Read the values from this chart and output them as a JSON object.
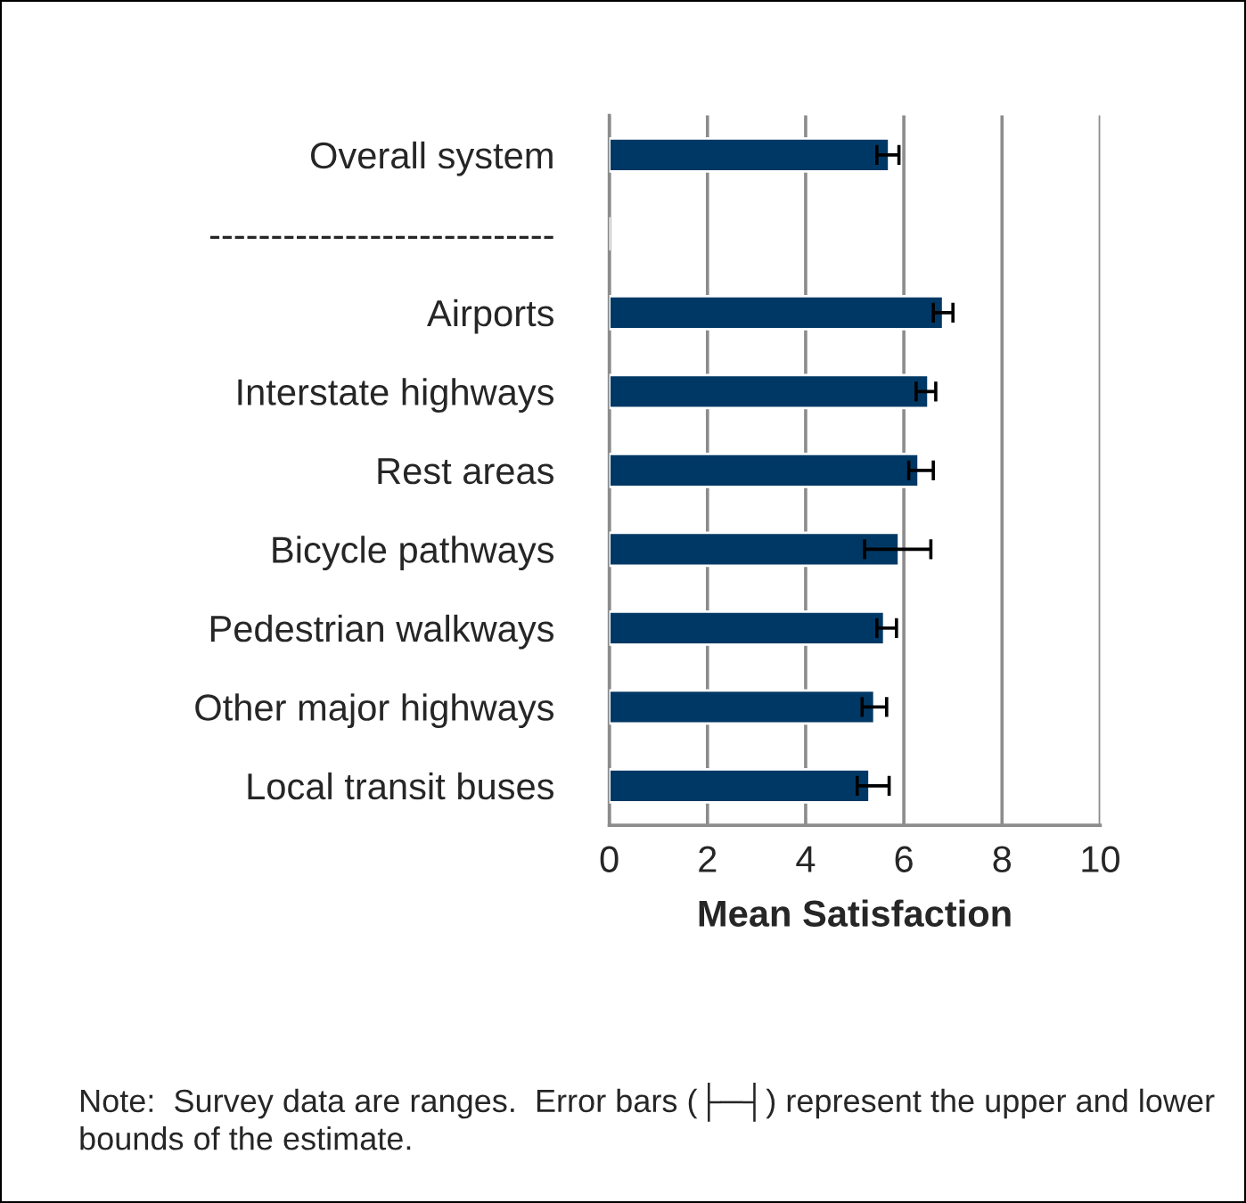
{
  "chart_data": {
    "type": "bar",
    "orientation": "horizontal",
    "categories": [
      "Overall system",
      "----------------------------",
      "Airports",
      "Interstate highways",
      "Rest areas",
      "Bicycle pathways",
      "Pedestrian walkways",
      "Other major highways",
      "Local transit buses"
    ],
    "values": [
      5.7,
      null,
      6.8,
      6.5,
      6.3,
      5.9,
      5.6,
      5.4,
      5.3
    ],
    "errors": [
      [
        5.45,
        5.9
      ],
      null,
      [
        6.6,
        7.0
      ],
      [
        6.25,
        6.65
      ],
      [
        6.1,
        6.6
      ],
      [
        5.2,
        6.55
      ],
      [
        5.45,
        5.85
      ],
      [
        5.15,
        5.65
      ],
      [
        5.05,
        5.7
      ]
    ],
    "color": "#003865",
    "xlabel": "Mean Satisfaction",
    "xlim": [
      0,
      10
    ],
    "xticks": [
      0,
      2,
      4,
      6,
      8,
      10
    ],
    "grid": "x",
    "annotations": [
      "Note:  Survey data are ranges.  Error bars (├─┤) represent the upper and lower bounds of the estimate."
    ]
  }
}
